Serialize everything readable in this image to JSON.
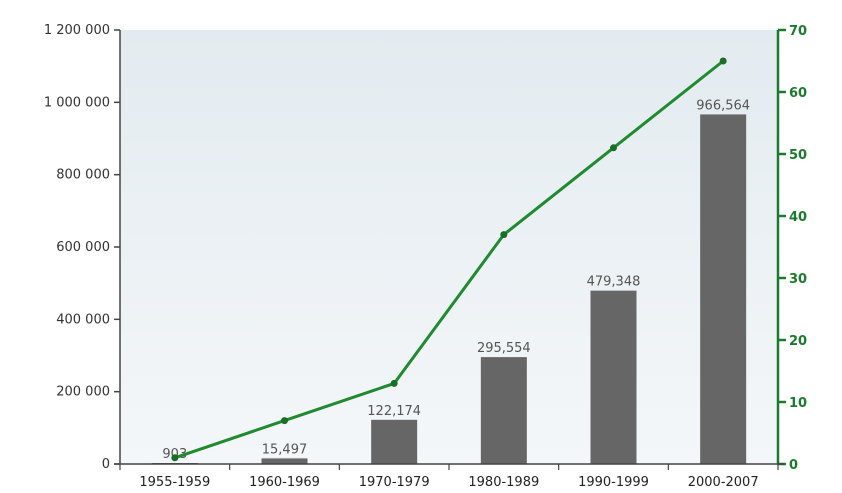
{
  "chart_data": {
    "type": "bar",
    "categories": [
      "1955-1959",
      "1960-1969",
      "1970-1979",
      "1980-1989",
      "1990-1999",
      "2000-2007"
    ],
    "series": [
      {
        "type": "bar",
        "axis": "left",
        "values": [
          903,
          15497,
          122174,
          295554,
          479348,
          966564
        ],
        "value_labels": [
          "903",
          "15,497",
          "122,174",
          "295,554",
          "479,348",
          "966,564"
        ],
        "color": "#666666"
      },
      {
        "type": "line",
        "axis": "right",
        "values": [
          1,
          7,
          13,
          37,
          51,
          65
        ],
        "color": "#1f8a2e"
      }
    ],
    "y_left": {
      "min": 0,
      "max": 1200000,
      "ticks": [
        0,
        200000,
        400000,
        600000,
        800000,
        1000000,
        1200000
      ],
      "tick_labels": [
        "0",
        "200 000",
        "400 000",
        "600 000",
        "800 000",
        "1 000 000",
        "1 200 000"
      ]
    },
    "y_right": {
      "min": 0,
      "max": 70,
      "ticks": [
        0,
        10,
        20,
        30,
        40,
        50,
        60,
        70
      ],
      "tick_labels": [
        "0",
        "10",
        "20",
        "30",
        "40",
        "50",
        "60",
        "70"
      ],
      "color": "#1b7a2b"
    },
    "title": "",
    "xlabel": "",
    "ylabel": "",
    "legend": "none",
    "grid": false
  }
}
